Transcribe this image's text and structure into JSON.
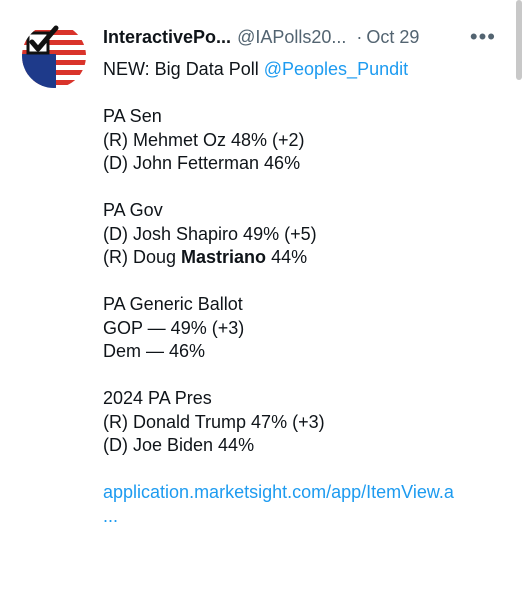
{
  "author": {
    "name": "InteractivePo...",
    "handle": "@IAPolls20...",
    "separator": "·",
    "date": "Oct 29",
    "more_label": "•••"
  },
  "tweet": {
    "intro": "NEW: Big Data Poll ",
    "mention": "@Peoples_Pundit",
    "sections": [
      {
        "heading": "PA Sen",
        "lines": [
          "(R) Mehmet Oz 48% (+2)",
          "(D) John Fetterman 46%"
        ]
      },
      {
        "heading": "PA Gov",
        "lines": [
          "(D) Josh Shapiro 49% (+5)"
        ],
        "rich_line": {
          "prefix": "(R) Doug ",
          "bold": "Mastriano",
          "suffix": " 44%"
        }
      },
      {
        "heading": "PA Generic Ballot",
        "lines": [
          "GOP — 49% (+3)",
          "Dem — 46%"
        ]
      },
      {
        "heading": "2024 PA Pres",
        "lines": [
          "(R) Donald Trump 47% (+3)",
          "(D) Joe Biden 44%"
        ]
      }
    ],
    "link": "application.marketsight.com/app/ItemView.a",
    "link_ellipsis": "..."
  },
  "colors": {
    "text": "#0f1419",
    "secondary": "#536471",
    "link": "#1d9bf0",
    "flag_red": "#d9342b",
    "flag_blue": "#1e3a8a"
  },
  "icons": {
    "avatar": "checkmark-flag-logo",
    "more": "more-horizontal-icon"
  }
}
